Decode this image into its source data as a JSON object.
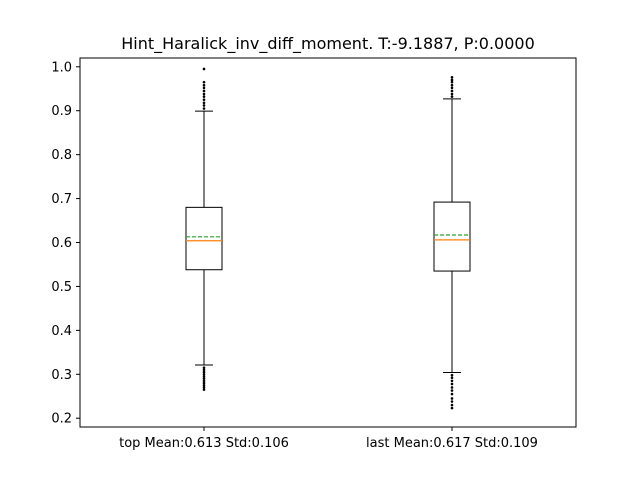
{
  "chart_data": {
    "type": "box",
    "title": "Hint_Haralick_inv_diff_moment. T:-9.1887, P:0.0000",
    "xlabel": "",
    "ylabel": "",
    "ylim": [
      0.18,
      1.02
    ],
    "yticks": [
      0.2,
      0.3,
      0.4,
      0.5,
      0.6,
      0.7,
      0.8,
      0.9,
      1.0
    ],
    "ytick_labels": [
      "0.2",
      "0.3",
      "0.4",
      "0.5",
      "0.6",
      "0.7",
      "0.8",
      "0.9",
      "1.0"
    ],
    "grid": false,
    "legend": "none",
    "categories": [
      "top Mean:0.613 Std:0.106",
      "last Mean:0.617 Std:0.109"
    ],
    "boxes": [
      {
        "whisker_low": 0.321,
        "q1": 0.538,
        "median": 0.604,
        "mean": 0.613,
        "q3": 0.68,
        "whisker_high": 0.899,
        "outliers_low": [
          0.265,
          0.27,
          0.275,
          0.28,
          0.285,
          0.29,
          0.295,
          0.3,
          0.305,
          0.31,
          0.315
        ],
        "outliers_high": [
          0.905,
          0.912,
          0.918,
          0.925,
          0.932,
          0.938,
          0.945,
          0.952,
          0.958,
          0.965,
          0.995
        ]
      },
      {
        "whisker_low": 0.304,
        "q1": 0.535,
        "median": 0.606,
        "mean": 0.617,
        "q3": 0.692,
        "whisker_high": 0.927,
        "outliers_low": [
          0.223,
          0.23,
          0.238,
          0.245,
          0.255,
          0.263,
          0.27,
          0.278,
          0.285,
          0.292,
          0.298
        ],
        "outliers_high": [
          0.932,
          0.938,
          0.945,
          0.952,
          0.958,
          0.965,
          0.97,
          0.976
        ]
      }
    ],
    "colors": {
      "box": "#000000",
      "median": "#ff7f0e",
      "mean": "#2ca02c"
    }
  }
}
